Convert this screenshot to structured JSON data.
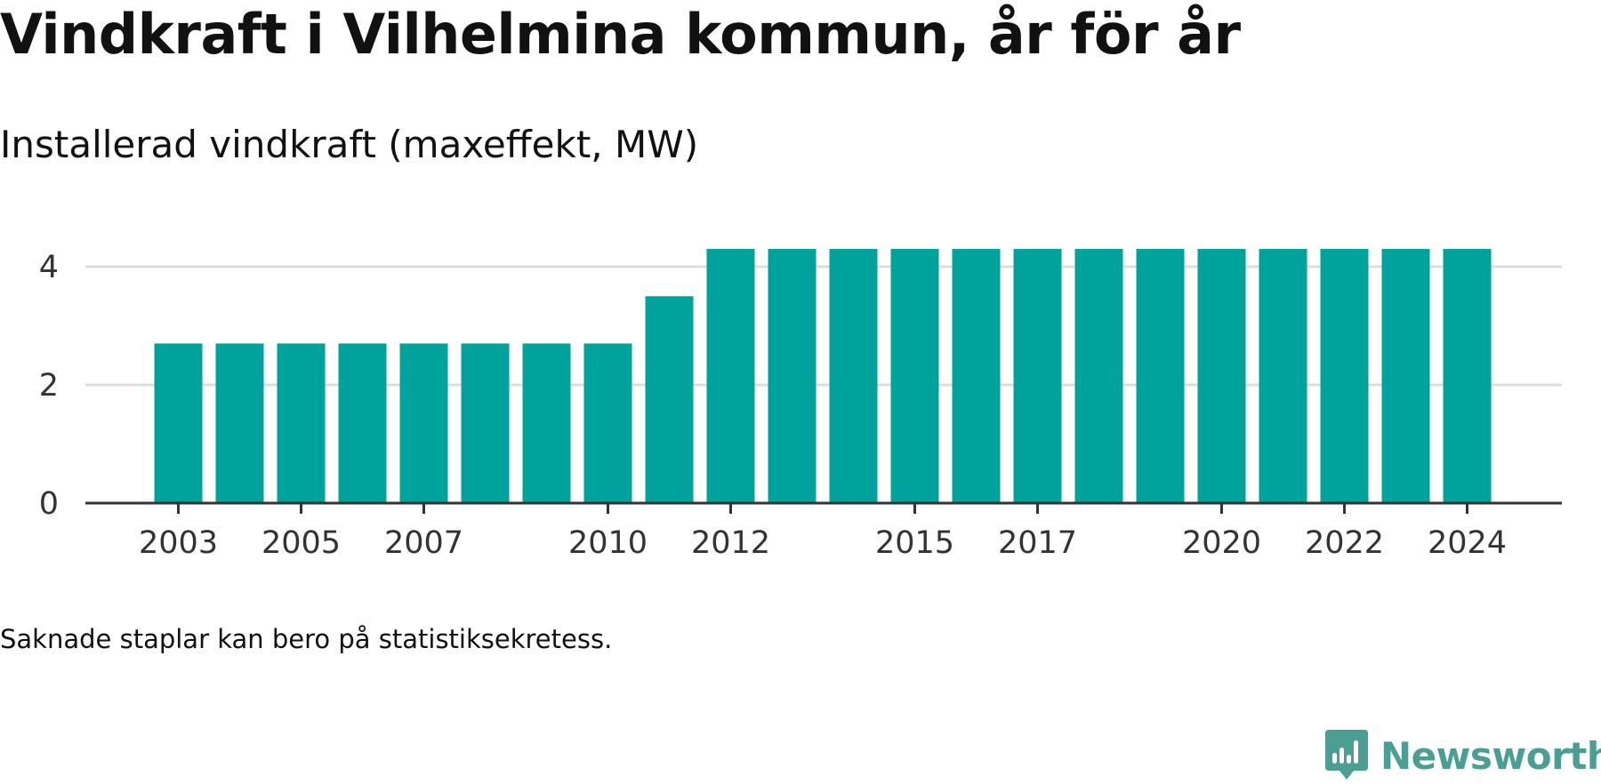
{
  "title": "Vindkraft i Vilhelmina kommun, år för år",
  "subtitle": "Installerad vindkraft (maxeffekt, MW)",
  "note": "Saknade staplar kan bero på statistiksekretess.",
  "brand": {
    "name": "Newsworthy",
    "color": "#4a9e94"
  },
  "chart_data": {
    "type": "bar",
    "categories": [
      "2003",
      "2004",
      "2005",
      "2006",
      "2007",
      "2008",
      "2009",
      "2010",
      "2011",
      "2012",
      "2013",
      "2014",
      "2015",
      "2016",
      "2017",
      "2018",
      "2019",
      "2020",
      "2021",
      "2022",
      "2023",
      "2024"
    ],
    "values": [
      2.7,
      2.7,
      2.7,
      2.7,
      2.7,
      2.7,
      2.7,
      2.7,
      3.5,
      4.3,
      4.3,
      4.3,
      4.3,
      4.3,
      4.3,
      4.3,
      4.3,
      4.3,
      4.3,
      4.3,
      4.3,
      4.3
    ],
    "x_tick_labels": [
      "2003",
      "2005",
      "2007",
      "2010",
      "2012",
      "2015",
      "2017",
      "2020",
      "2022",
      "2024"
    ],
    "y_ticks": [
      0,
      2,
      4
    ],
    "ylim": [
      0,
      4.3
    ],
    "xlabel": "",
    "ylabel": "",
    "grid": true,
    "bar_color": "#00a39b"
  }
}
